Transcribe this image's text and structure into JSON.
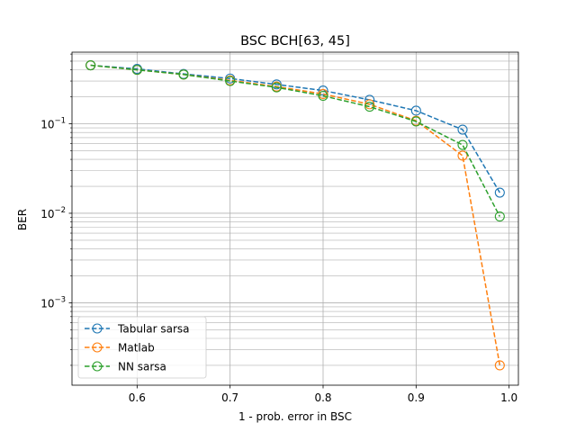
{
  "chart_data": {
    "type": "line",
    "title": "BSC BCH[63, 45]",
    "xlabel": "1 - prob. error in BSC",
    "ylabel": "BER",
    "xlim": [
      0.53,
      1.01
    ],
    "ylim": [
      0.00012,
      0.63
    ],
    "yscale": "log",
    "xticks": [
      0.6,
      0.7,
      0.8,
      0.9,
      1.0
    ],
    "xtick_labels": [
      "0.6",
      "0.7",
      "0.8",
      "0.9",
      "1.0"
    ],
    "yticks": [
      0.001,
      0.01,
      0.1
    ],
    "ytick_labels": [
      {
        "base": "10",
        "exp": "−3"
      },
      {
        "base": "10",
        "exp": "−2"
      },
      {
        "base": "10",
        "exp": "−1"
      }
    ],
    "grid": true,
    "legend_position": "lower-left",
    "x": [
      0.55,
      0.6,
      0.65,
      0.7,
      0.75,
      0.8,
      0.85,
      0.9,
      0.95,
      0.99
    ],
    "series": [
      {
        "name": "Tabular sarsa",
        "color": "#1f77b4",
        "values": [
          0.45,
          0.41,
          0.36,
          0.32,
          0.275,
          0.235,
          0.185,
          0.14,
          0.086,
          0.017
        ]
      },
      {
        "name": "Matlab",
        "color": "#ff7f0e",
        "values": [
          0.45,
          0.4,
          0.355,
          0.305,
          0.26,
          0.215,
          0.165,
          0.108,
          0.044,
          0.0002
        ]
      },
      {
        "name": "NN sarsa",
        "color": "#2ca02c",
        "values": [
          0.45,
          0.4,
          0.355,
          0.3,
          0.255,
          0.205,
          0.155,
          0.106,
          0.058,
          0.0092
        ]
      }
    ]
  }
}
